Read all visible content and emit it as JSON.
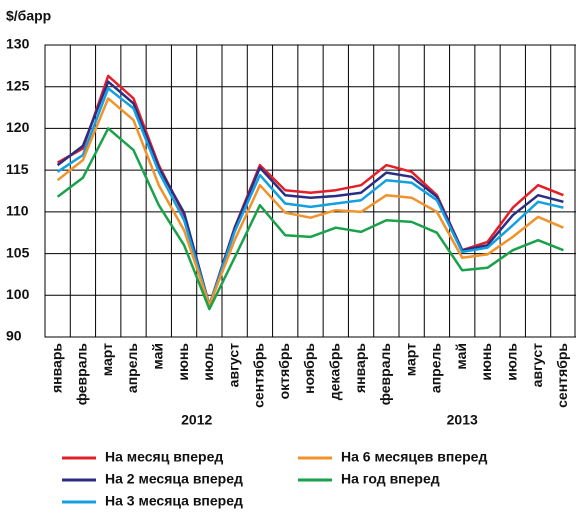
{
  "chart_data": {
    "type": "line",
    "y_unit_label": "$/барр",
    "category_groups": [
      {
        "label": "2012",
        "categories": [
          "январь",
          "февраль",
          "март",
          "апрель",
          "май",
          "июнь",
          "июль",
          "август",
          "сентябрь",
          "октябрь",
          "ноябрь",
          "декабрь"
        ]
      },
      {
        "label": "2013",
        "categories": [
          "январь",
          "февраль",
          "март",
          "апрель",
          "май",
          "июнь",
          "июль",
          "август",
          "сентябрь"
        ]
      }
    ],
    "series": [
      {
        "name": "На месяц вперед",
        "color": "#e3202a",
        "values": [
          115.9,
          117.6,
          126.3,
          123.6,
          115.6,
          109.6,
          97.6,
          108.1,
          115.6,
          112.6,
          112.3,
          112.6,
          113.2,
          115.6,
          114.8,
          112,
          105.4,
          106.4,
          110.5,
          113.2,
          112
        ]
      },
      {
        "name": "На 2 месяца вперед",
        "color": "#2b2e83",
        "values": [
          115.6,
          117.9,
          125.6,
          123,
          115.3,
          109.9,
          97.6,
          108,
          115.3,
          112,
          111.7,
          111.9,
          112.3,
          114.7,
          114.2,
          111.8,
          105.4,
          106,
          109.6,
          112,
          111.2
        ]
      },
      {
        "name": "На 3 месяца вперед",
        "color": "#14a0e0",
        "values": [
          114.8,
          116.8,
          124.8,
          122.4,
          114.8,
          109,
          97.6,
          107.6,
          114.4,
          111,
          110.6,
          111,
          111.4,
          113.8,
          113.5,
          111.4,
          105.2,
          105.7,
          108.4,
          111.2,
          110.5
        ]
      },
      {
        "name": "На 6 месяцев вперед",
        "color": "#f2922b",
        "values": [
          113.8,
          116.2,
          123.6,
          121,
          113.2,
          107.8,
          97.6,
          106.6,
          113.2,
          109.9,
          109.3,
          110.2,
          110,
          112,
          111.7,
          110,
          104.5,
          104.9,
          107,
          109.4,
          108.1
        ]
      },
      {
        "name": "На год вперед",
        "color": "#1aa24b",
        "values": [
          111.8,
          114.1,
          120,
          117.4,
          110.8,
          106,
          96.7,
          104.5,
          110.8,
          107.2,
          107,
          108.1,
          107.6,
          109,
          108.8,
          107.5,
          103,
          103.3,
          105.4,
          106.6,
          105.4
        ]
      }
    ],
    "ylim": [
      90,
      130
    ],
    "yticks": [
      90,
      100,
      105,
      110,
      115,
      120,
      125,
      130
    ],
    "broken_axis": true,
    "grid": true
  }
}
